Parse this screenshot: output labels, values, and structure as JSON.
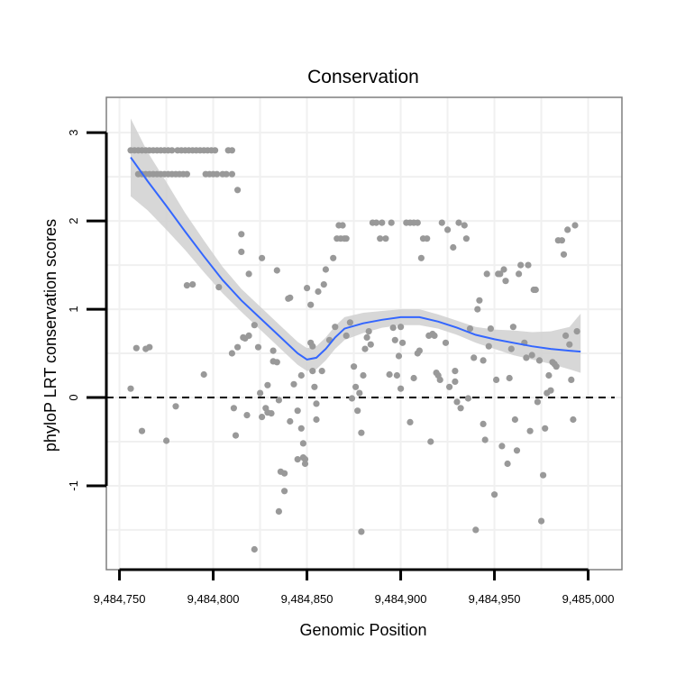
{
  "chart_data": {
    "type": "scatter",
    "title": "Conservation",
    "xlabel": "Genomic Position",
    "ylabel": "phyloP LRT conservation scores",
    "xlim": [
      9484743,
      9485018
    ],
    "ylim": [
      -1.95,
      3.4
    ],
    "x_ticks": [
      9484750,
      9484800,
      9484850,
      9484900,
      9484950,
      9485000
    ],
    "x_tick_labels": [
      "9,484,750",
      "9,484,800",
      "9,484,850",
      "9,484,900",
      "9,484,950",
      "9,485,000"
    ],
    "y_ticks": [
      -1,
      0,
      1,
      2,
      3
    ],
    "y_tick_labels": [
      "-1",
      "0",
      "1",
      "2",
      "3"
    ],
    "grid": true,
    "reference_line": {
      "y": 0,
      "style": "dashed"
    },
    "colors": {
      "points": "#999999",
      "smooth": "#3366ff",
      "ribbon": "#d0d0d0",
      "grid": "#f0f0f0",
      "border": "#7f7f7f"
    },
    "series": [
      {
        "name": "scores",
        "type": "scatter",
        "points": [
          [
            9484756,
            2.8
          ],
          [
            9484758,
            2.8
          ],
          [
            9484760,
            2.8
          ],
          [
            9484762,
            2.8
          ],
          [
            9484764,
            2.8
          ],
          [
            9484766,
            2.8
          ],
          [
            9484768,
            2.8
          ],
          [
            9484770,
            2.8
          ],
          [
            9484772,
            2.8
          ],
          [
            9484774,
            2.8
          ],
          [
            9484776,
            2.8
          ],
          [
            9484778,
            2.8
          ],
          [
            9484781,
            2.8
          ],
          [
            9484783,
            2.8
          ],
          [
            9484785,
            2.8
          ],
          [
            9484787,
            2.8
          ],
          [
            9484789,
            2.8
          ],
          [
            9484791,
            2.8
          ],
          [
            9484793,
            2.8
          ],
          [
            9484795,
            2.8
          ],
          [
            9484797,
            2.8
          ],
          [
            9484799,
            2.8
          ],
          [
            9484801,
            2.8
          ],
          [
            9484808,
            2.8
          ],
          [
            9484810,
            2.8
          ],
          [
            9484760,
            2.53
          ],
          [
            9484762,
            2.53
          ],
          [
            9484764,
            2.53
          ],
          [
            9484766,
            2.53
          ],
          [
            9484768,
            2.53
          ],
          [
            9484770,
            2.53
          ],
          [
            9484772,
            2.53
          ],
          [
            9484774,
            2.53
          ],
          [
            9484776,
            2.53
          ],
          [
            9484778,
            2.53
          ],
          [
            9484780,
            2.53
          ],
          [
            9484782,
            2.53
          ],
          [
            9484784,
            2.53
          ],
          [
            9484786,
            2.53
          ],
          [
            9484796,
            2.53
          ],
          [
            9484798,
            2.53
          ],
          [
            9484800,
            2.53
          ],
          [
            9484802,
            2.53
          ],
          [
            9484805,
            2.53
          ],
          [
            9484807,
            2.53
          ],
          [
            9484810,
            2.53
          ],
          [
            9484813,
            2.35
          ],
          [
            9484815,
            1.85
          ],
          [
            9484815,
            1.65
          ],
          [
            9484819,
            1.4
          ],
          [
            9484826,
            1.58
          ],
          [
            9484834,
            1.44
          ],
          [
            9484786,
            1.27
          ],
          [
            9484789,
            1.28
          ],
          [
            9484803,
            1.25
          ],
          [
            9484756,
            0.1
          ],
          [
            9484759,
            0.56
          ],
          [
            9484764,
            0.55
          ],
          [
            9484766,
            0.57
          ],
          [
            9484762,
            -0.38
          ],
          [
            9484775,
            -0.49
          ],
          [
            9484780,
            -0.1
          ],
          [
            9484795,
            0.26
          ],
          [
            9484810,
            0.5
          ],
          [
            9484813,
            0.57
          ],
          [
            9484816,
            0.68
          ],
          [
            9484817,
            0.67
          ],
          [
            9484819,
            0.7
          ],
          [
            9484822,
            0.82
          ],
          [
            9484824,
            0.57
          ],
          [
            9484812,
            -0.43
          ],
          [
            9484811,
            -0.12
          ],
          [
            9484818,
            -0.2
          ],
          [
            9484822,
            -1.72
          ],
          [
            9484825,
            0.05
          ],
          [
            9484826,
            -0.22
          ],
          [
            9484828,
            -0.12
          ],
          [
            9484829,
            -0.17
          ],
          [
            9484831,
            -0.18
          ],
          [
            9484829,
            0.14
          ],
          [
            9484832,
            0.53
          ],
          [
            9484832,
            0.41
          ],
          [
            9484834,
            0.4
          ],
          [
            9484835,
            -0.03
          ],
          [
            9484835,
            -1.29
          ],
          [
            9484836,
            -0.84
          ],
          [
            9484838,
            -0.86
          ],
          [
            9484838,
            -1.06
          ],
          [
            9484840,
            1.12
          ],
          [
            9484841,
            1.13
          ],
          [
            9484841,
            -0.27
          ],
          [
            9484843,
            0.15
          ],
          [
            9484845,
            -0.15
          ],
          [
            9484845,
            -0.7
          ],
          [
            9484847,
            0.25
          ],
          [
            9484847,
            -0.35
          ],
          [
            9484848,
            -0.52
          ],
          [
            9484848,
            -0.68
          ],
          [
            9484849,
            -0.75
          ],
          [
            9484849,
            -0.7
          ],
          [
            9484850,
            1.24
          ],
          [
            9484852,
            1.05
          ],
          [
            9484852,
            0.62
          ],
          [
            9484853,
            0.58
          ],
          [
            9484853,
            0.3
          ],
          [
            9484854,
            0.12
          ],
          [
            9484855,
            -0.07
          ],
          [
            9484855,
            -0.25
          ],
          [
            9484856,
            1.2
          ],
          [
            9484858,
            0.3
          ],
          [
            9484859,
            1.28
          ],
          [
            9484860,
            1.45
          ],
          [
            9484862,
            0.65
          ],
          [
            9484864,
            1.58
          ],
          [
            9484865,
            0.8
          ],
          [
            9484866,
            1.8
          ],
          [
            9484867,
            1.95
          ],
          [
            9484868,
            1.8
          ],
          [
            9484869,
            1.95
          ],
          [
            9484870,
            1.8
          ],
          [
            9484871,
            1.8
          ],
          [
            9484871,
            0.7
          ],
          [
            9484873,
            0.85
          ],
          [
            9484874,
            -0.01
          ],
          [
            9484875,
            0.35
          ],
          [
            9484876,
            0.12
          ],
          [
            9484877,
            -0.15
          ],
          [
            9484878,
            0.05
          ],
          [
            9484879,
            -0.4
          ],
          [
            9484879,
            -1.52
          ],
          [
            9484880,
            0.25
          ],
          [
            9484881,
            0.55
          ],
          [
            9484882,
            0.68
          ],
          [
            9484883,
            0.75
          ],
          [
            9484884,
            0.6
          ],
          [
            9484885,
            1.98
          ],
          [
            9484887,
            1.98
          ],
          [
            9484889,
            1.8
          ],
          [
            9484890,
            1.98
          ],
          [
            9484892,
            1.8
          ],
          [
            9484894,
            0.26
          ],
          [
            9484895,
            1.98
          ],
          [
            9484896,
            0.79
          ],
          [
            9484897,
            0.65
          ],
          [
            9484898,
            0.25
          ],
          [
            9484899,
            0.47
          ],
          [
            9484900,
            0.8
          ],
          [
            9484901,
            0.62
          ],
          [
            9484903,
            1.98
          ],
          [
            9484905,
            1.98
          ],
          [
            9484907,
            1.98
          ],
          [
            9484909,
            1.98
          ],
          [
            9484909,
            0.5
          ],
          [
            9484910,
            0.53
          ],
          [
            9484911,
            1.58
          ],
          [
            9484912,
            1.8
          ],
          [
            9484914,
            1.8
          ],
          [
            9484915,
            0.7
          ],
          [
            9484916,
            -0.5
          ],
          [
            9484917,
            0.72
          ],
          [
            9484918,
            0.7
          ],
          [
            9484919,
            0.28
          ],
          [
            9484920,
            0.25
          ],
          [
            9484921,
            0.2
          ],
          [
            9484922,
            1.98
          ],
          [
            9484924,
            0.62
          ],
          [
            9484925,
            1.9
          ],
          [
            9484926,
            0.12
          ],
          [
            9484928,
            1.7
          ],
          [
            9484929,
            0.18
          ],
          [
            9484930,
            -0.05
          ],
          [
            9484931,
            1.98
          ],
          [
            9484932,
            -0.12
          ],
          [
            9484934,
            1.95
          ],
          [
            9484935,
            1.8
          ],
          [
            9484937,
            0.78
          ],
          [
            9484939,
            0.45
          ],
          [
            9484940,
            -1.5
          ],
          [
            9484941,
            1.0
          ],
          [
            9484942,
            1.1
          ],
          [
            9484944,
            0.42
          ],
          [
            9484945,
            -0.48
          ],
          [
            9484946,
            1.4
          ],
          [
            9484947,
            0.58
          ],
          [
            9484948,
            0.78
          ],
          [
            9484950,
            -1.1
          ],
          [
            9484951,
            0.2
          ],
          [
            9484952,
            1.4
          ],
          [
            9484953,
            1.4
          ],
          [
            9484954,
            -0.55
          ],
          [
            9484955,
            1.45
          ],
          [
            9484956,
            1.32
          ],
          [
            9484958,
            0.22
          ],
          [
            9484959,
            0.55
          ],
          [
            9484960,
            0.8
          ],
          [
            9484961,
            -0.25
          ],
          [
            9484962,
            -0.6
          ],
          [
            9484963,
            1.4
          ],
          [
            9484964,
            1.5
          ],
          [
            9484966,
            0.62
          ],
          [
            9484967,
            0.45
          ],
          [
            9484968,
            1.5
          ],
          [
            9484969,
            -0.38
          ],
          [
            9484970,
            0.48
          ],
          [
            9484971,
            1.22
          ],
          [
            9484972,
            1.22
          ],
          [
            9484973,
            -0.05
          ],
          [
            9484974,
            0.42
          ],
          [
            9484975,
            -1.4
          ],
          [
            9484976,
            -0.88
          ],
          [
            9484977,
            -0.35
          ],
          [
            9484978,
            0.05
          ],
          [
            9484979,
            0.25
          ],
          [
            9484980,
            0.08
          ],
          [
            9484981,
            0.4
          ],
          [
            9484982,
            0.38
          ],
          [
            9484983,
            0.35
          ],
          [
            9484984,
            1.78
          ],
          [
            9484986,
            1.78
          ],
          [
            9484987,
            1.62
          ],
          [
            9484988,
            0.7
          ],
          [
            9484989,
            1.9
          ],
          [
            9484990,
            0.6
          ],
          [
            9484991,
            0.2
          ],
          [
            9484992,
            -0.25
          ],
          [
            9484993,
            1.95
          ],
          [
            9484994,
            0.75
          ],
          [
            9484957,
            -0.75
          ],
          [
            9484944,
            -0.3
          ],
          [
            9484936,
            -0.01
          ],
          [
            9484929,
            0.3
          ],
          [
            9484907,
            0.22
          ],
          [
            9484905,
            -0.28
          ],
          [
            9484900,
            0.1
          ]
        ]
      },
      {
        "name": "loess fit",
        "type": "line",
        "x": [
          9484756,
          9484765,
          9484775,
          9484785,
          9484795,
          9484805,
          9484815,
          9484825,
          9484835,
          9484845,
          9484850,
          9484855,
          9484860,
          9484865,
          9484870,
          9484880,
          9484890,
          9484900,
          9484910,
          9484920,
          9484930,
          9484940,
          9484950,
          9484960,
          9484970,
          9484980,
          9484990,
          9484996
        ],
        "y": [
          2.72,
          2.45,
          2.17,
          1.88,
          1.6,
          1.33,
          1.1,
          0.9,
          0.7,
          0.5,
          0.43,
          0.45,
          0.55,
          0.68,
          0.78,
          0.84,
          0.88,
          0.91,
          0.91,
          0.86,
          0.79,
          0.71,
          0.66,
          0.62,
          0.58,
          0.55,
          0.53,
          0.52
        ],
        "ci_low": [
          2.28,
          2.12,
          1.9,
          1.67,
          1.42,
          1.18,
          0.97,
          0.77,
          0.57,
          0.37,
          0.3,
          0.32,
          0.42,
          0.55,
          0.65,
          0.73,
          0.79,
          0.82,
          0.82,
          0.78,
          0.71,
          0.62,
          0.55,
          0.48,
          0.43,
          0.38,
          0.32,
          0.28
        ],
        "ci_high": [
          3.16,
          2.78,
          2.44,
          2.09,
          1.78,
          1.48,
          1.23,
          1.03,
          0.83,
          0.63,
          0.56,
          0.58,
          0.68,
          0.81,
          0.91,
          0.96,
          0.98,
          1.0,
          1.0,
          0.94,
          0.87,
          0.8,
          0.77,
          0.76,
          0.74,
          0.75,
          0.8,
          0.95
        ]
      }
    ]
  }
}
